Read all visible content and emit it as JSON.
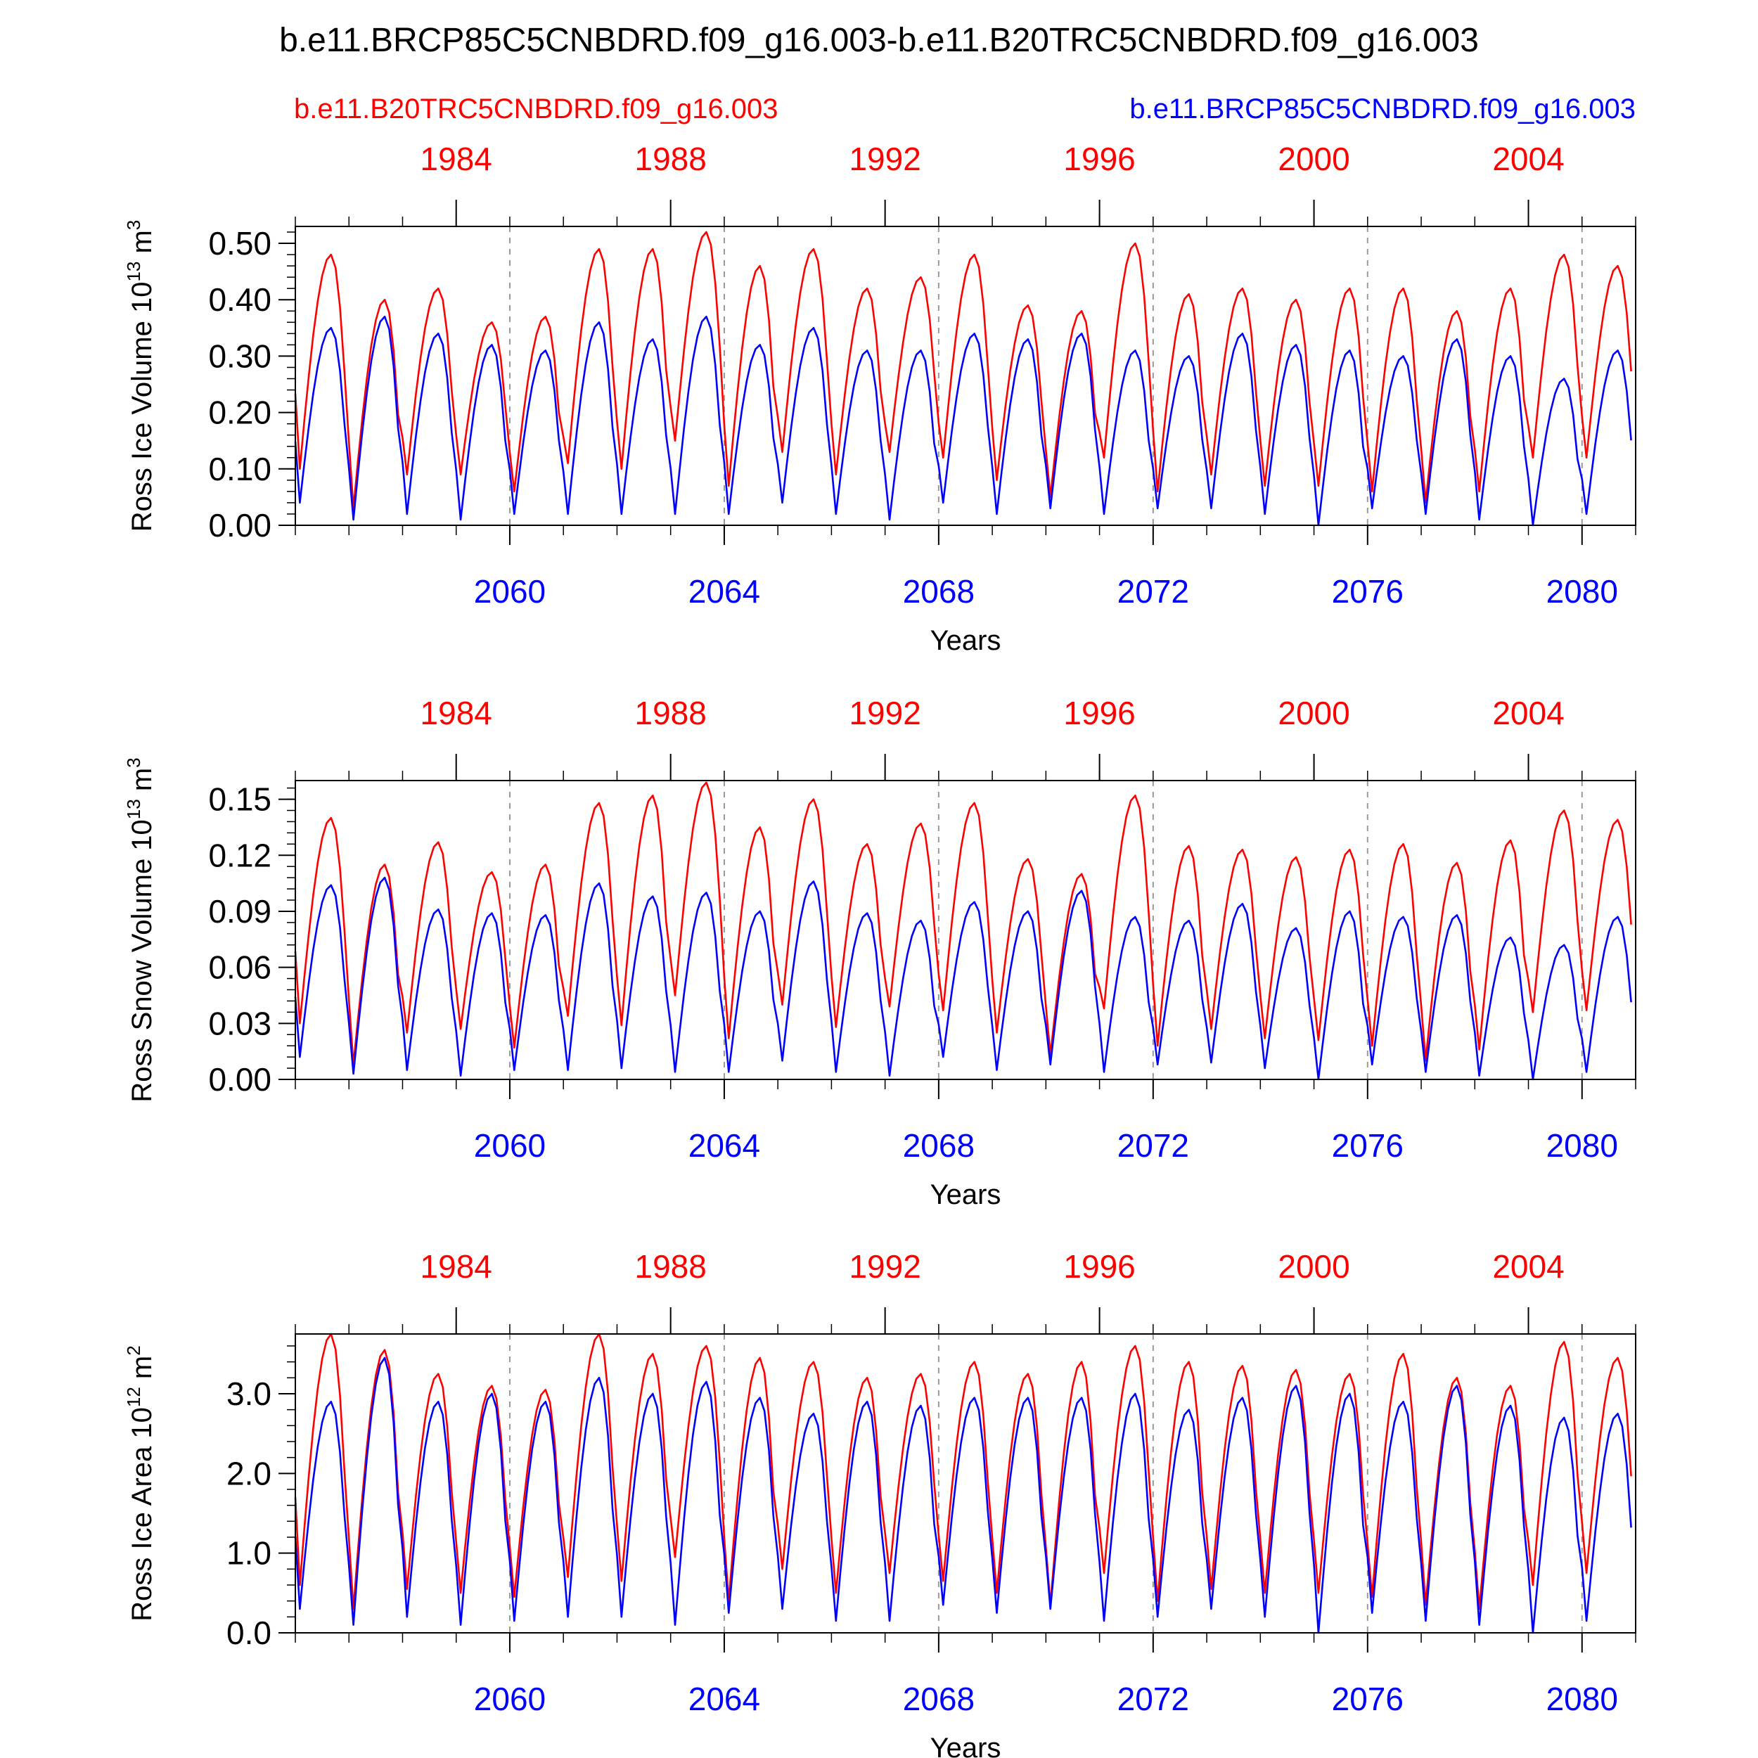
{
  "title": "b.e11.BRCP85C5CNBDRD.f09_g16.003-b.e11.B20TRC5CNBDRD.f09_g16.003",
  "legend": {
    "red_case": "b.e11.B20TRC5CNBDRD.f09_g16.003",
    "blue_case": "b.e11.BRCP85C5CNBDRD.f09_g16.003"
  },
  "colors": {
    "red": "#ff0000",
    "blue": "#0000ff",
    "black": "#000000",
    "grid": "#999999"
  },
  "chart_data": [
    {
      "type": "line",
      "ylabel": "Ross Ice Volume",
      "yunit_base": "10",
      "yunit_exp": "13",
      "yunit_suffix": "m",
      "yunit_suffix_exp": "3",
      "xlabel": "Years",
      "xlim": [
        2056,
        2081
      ],
      "ylim": [
        0.0,
        0.53
      ],
      "yticks": [
        {
          "v": 0.0,
          "label": "0.00"
        },
        {
          "v": 0.1,
          "label": "0.10"
        },
        {
          "v": 0.2,
          "label": "0.20"
        },
        {
          "v": 0.3,
          "label": "0.30"
        },
        {
          "v": 0.4,
          "label": "0.40"
        },
        {
          "v": 0.5,
          "label": "0.50"
        }
      ],
      "yminor_step": 0.02,
      "bottom_axis_years": [
        {
          "v": 2060,
          "label": "2060"
        },
        {
          "v": 2064,
          "label": "2064"
        },
        {
          "v": 2068,
          "label": "2068"
        },
        {
          "v": 2072,
          "label": "2072"
        },
        {
          "v": 2076,
          "label": "2076"
        },
        {
          "v": 2080,
          "label": "2080"
        }
      ],
      "top_axis_years": [
        {
          "v": 2059,
          "label": "1984"
        },
        {
          "v": 2063,
          "label": "1988"
        },
        {
          "v": 2067,
          "label": "1992"
        },
        {
          "v": 2071,
          "label": "1996"
        },
        {
          "v": 2075,
          "label": "2000"
        },
        {
          "v": 2079,
          "label": "2004"
        }
      ],
      "series": [
        {
          "name": "b.e11.B20TRC5CNBDRD.f09_g16.003",
          "color": "red",
          "start_year": 2056,
          "maxima": [
            0.48,
            0.4,
            0.42,
            0.36,
            0.37,
            0.49,
            0.49,
            0.52,
            0.46,
            0.49,
            0.42,
            0.44,
            0.48,
            0.39,
            0.38,
            0.5,
            0.41,
            0.42,
            0.4,
            0.42,
            0.42,
            0.38,
            0.42,
            0.48,
            0.46
          ],
          "minima": [
            0.1,
            0.03,
            0.09,
            0.09,
            0.06,
            0.11,
            0.1,
            0.15,
            0.07,
            0.13,
            0.09,
            0.13,
            0.12,
            0.08,
            0.05,
            0.12,
            0.06,
            0.09,
            0.07,
            0.07,
            0.06,
            0.04,
            0.06,
            0.12,
            0.12
          ]
        },
        {
          "name": "b.e11.BRCP85C5CNBDRD.f09_g16.003",
          "color": "blue",
          "start_year": 2056,
          "maxima": [
            0.35,
            0.37,
            0.34,
            0.32,
            0.31,
            0.36,
            0.33,
            0.37,
            0.32,
            0.35,
            0.31,
            0.31,
            0.34,
            0.33,
            0.34,
            0.31,
            0.3,
            0.34,
            0.32,
            0.31,
            0.3,
            0.33,
            0.3,
            0.26,
            0.31
          ],
          "minima": [
            0.04,
            0.01,
            0.02,
            0.01,
            0.02,
            0.02,
            0.02,
            0.02,
            0.02,
            0.04,
            0.02,
            0.01,
            0.04,
            0.02,
            0.03,
            0.02,
            0.03,
            0.03,
            0.02,
            0.0,
            0.03,
            0.02,
            0.01,
            0.0,
            0.02
          ]
        }
      ]
    },
    {
      "type": "line",
      "ylabel": "Ross Snow Volume",
      "yunit_base": "10",
      "yunit_exp": "13",
      "yunit_suffix": "m",
      "yunit_suffix_exp": "3",
      "xlabel": "Years",
      "xlim": [
        2056,
        2081
      ],
      "ylim": [
        0.0,
        0.16
      ],
      "yticks": [
        {
          "v": 0.0,
          "label": "0.00"
        },
        {
          "v": 0.03,
          "label": "0.03"
        },
        {
          "v": 0.06,
          "label": "0.06"
        },
        {
          "v": 0.09,
          "label": "0.09"
        },
        {
          "v": 0.12,
          "label": "0.12"
        },
        {
          "v": 0.15,
          "label": "0.15"
        }
      ],
      "yminor_step": 0.006,
      "bottom_axis_years": [
        {
          "v": 2060,
          "label": "2060"
        },
        {
          "v": 2064,
          "label": "2064"
        },
        {
          "v": 2068,
          "label": "2068"
        },
        {
          "v": 2072,
          "label": "2072"
        },
        {
          "v": 2076,
          "label": "2076"
        },
        {
          "v": 2080,
          "label": "2080"
        }
      ],
      "top_axis_years": [
        {
          "v": 2059,
          "label": "1984"
        },
        {
          "v": 2063,
          "label": "1988"
        },
        {
          "v": 2067,
          "label": "1992"
        },
        {
          "v": 2071,
          "label": "1996"
        },
        {
          "v": 2075,
          "label": "2000"
        },
        {
          "v": 2079,
          "label": "2004"
        }
      ],
      "series": [
        {
          "name": "b.e11.B20TRC5CNBDRD.f09_g16.003",
          "color": "red",
          "start_year": 2056,
          "maxima": [
            0.14,
            0.115,
            0.127,
            0.111,
            0.115,
            0.148,
            0.152,
            0.159,
            0.135,
            0.15,
            0.126,
            0.137,
            0.148,
            0.118,
            0.11,
            0.152,
            0.125,
            0.123,
            0.119,
            0.123,
            0.126,
            0.116,
            0.128,
            0.144,
            0.139
          ],
          "minima": [
            0.03,
            0.008,
            0.025,
            0.027,
            0.017,
            0.034,
            0.029,
            0.045,
            0.022,
            0.04,
            0.028,
            0.039,
            0.037,
            0.025,
            0.013,
            0.038,
            0.018,
            0.027,
            0.022,
            0.021,
            0.018,
            0.01,
            0.016,
            0.036,
            0.037
          ]
        },
        {
          "name": "b.e11.BRCP85C5CNBDRD.f09_g16.003",
          "color": "blue",
          "start_year": 2056,
          "maxima": [
            0.104,
            0.108,
            0.091,
            0.089,
            0.088,
            0.105,
            0.098,
            0.1,
            0.09,
            0.106,
            0.089,
            0.085,
            0.095,
            0.09,
            0.101,
            0.087,
            0.085,
            0.094,
            0.081,
            0.09,
            0.087,
            0.088,
            0.076,
            0.072,
            0.087
          ],
          "minima": [
            0.012,
            0.003,
            0.005,
            0.002,
            0.005,
            0.005,
            0.006,
            0.004,
            0.004,
            0.01,
            0.004,
            0.002,
            0.012,
            0.005,
            0.008,
            0.004,
            0.008,
            0.009,
            0.006,
            0.0,
            0.008,
            0.004,
            0.002,
            0.0,
            0.004
          ]
        }
      ]
    },
    {
      "type": "line",
      "ylabel": "Ross Ice Area",
      "yunit_base": "10",
      "yunit_exp": "12",
      "yunit_suffix": "m",
      "yunit_suffix_exp": "2",
      "xlabel": "Years",
      "xlim": [
        2056,
        2081
      ],
      "ylim": [
        0.0,
        3.75
      ],
      "yticks": [
        {
          "v": 0.0,
          "label": "0.0"
        },
        {
          "v": 1.0,
          "label": "1.0"
        },
        {
          "v": 2.0,
          "label": "2.0"
        },
        {
          "v": 3.0,
          "label": "3.0"
        }
      ],
      "yminor_step": 0.2,
      "bottom_axis_years": [
        {
          "v": 2060,
          "label": "2060"
        },
        {
          "v": 2064,
          "label": "2064"
        },
        {
          "v": 2068,
          "label": "2068"
        },
        {
          "v": 2072,
          "label": "2072"
        },
        {
          "v": 2076,
          "label": "2076"
        },
        {
          "v": 2080,
          "label": "2080"
        }
      ],
      "top_axis_years": [
        {
          "v": 2059,
          "label": "1984"
        },
        {
          "v": 2063,
          "label": "1988"
        },
        {
          "v": 2067,
          "label": "1992"
        },
        {
          "v": 2071,
          "label": "1996"
        },
        {
          "v": 2075,
          "label": "2000"
        },
        {
          "v": 2079,
          "label": "2004"
        }
      ],
      "series": [
        {
          "name": "b.e11.B20TRC5CNBDRD.f09_g16.003",
          "color": "red",
          "start_year": 2056,
          "maxima": [
            3.75,
            3.55,
            3.25,
            3.1,
            3.05,
            3.75,
            3.5,
            3.6,
            3.45,
            3.4,
            3.2,
            3.25,
            3.4,
            3.25,
            3.4,
            3.6,
            3.4,
            3.35,
            3.3,
            3.25,
            3.5,
            3.2,
            3.1,
            3.65,
            3.45
          ],
          "minima": [
            0.6,
            0.3,
            0.55,
            0.5,
            0.45,
            0.7,
            0.65,
            0.95,
            0.4,
            0.8,
            0.5,
            0.75,
            0.65,
            0.5,
            0.35,
            0.75,
            0.4,
            0.55,
            0.5,
            0.5,
            0.45,
            0.35,
            0.3,
            0.6,
            0.75
          ]
        },
        {
          "name": "b.e11.BRCP85C5CNBDRD.f09_g16.003",
          "color": "blue",
          "start_year": 2056,
          "maxima": [
            2.9,
            3.45,
            2.9,
            3.0,
            2.9,
            3.2,
            3.0,
            3.15,
            2.95,
            2.75,
            2.9,
            2.85,
            2.95,
            2.95,
            2.95,
            3.0,
            2.8,
            2.95,
            3.1,
            3.0,
            2.9,
            3.1,
            2.85,
            2.7,
            2.75
          ],
          "minima": [
            0.3,
            0.1,
            0.2,
            0.1,
            0.15,
            0.2,
            0.2,
            0.1,
            0.25,
            0.3,
            0.15,
            0.15,
            0.35,
            0.25,
            0.3,
            0.15,
            0.2,
            0.3,
            0.2,
            0.0,
            0.25,
            0.15,
            0.1,
            0.0,
            0.15
          ]
        }
      ]
    }
  ]
}
